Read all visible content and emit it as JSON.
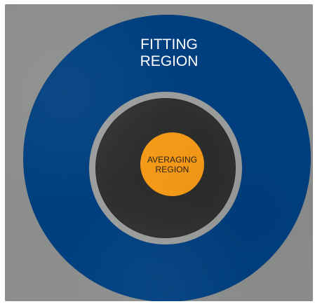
{
  "diagram": {
    "outer_region": {
      "label_line_1": "FITTING",
      "label_line_2": "REGION",
      "color": "#003f7f"
    },
    "inner_region": {
      "label_line_1": "AVERAGING",
      "label_line_2": "REGION",
      "color": "#f69a17"
    },
    "background_color": "#8c8d8d",
    "middle_ring_color": "#9b9c9c",
    "dark_core_color": "#2b2c2c"
  }
}
